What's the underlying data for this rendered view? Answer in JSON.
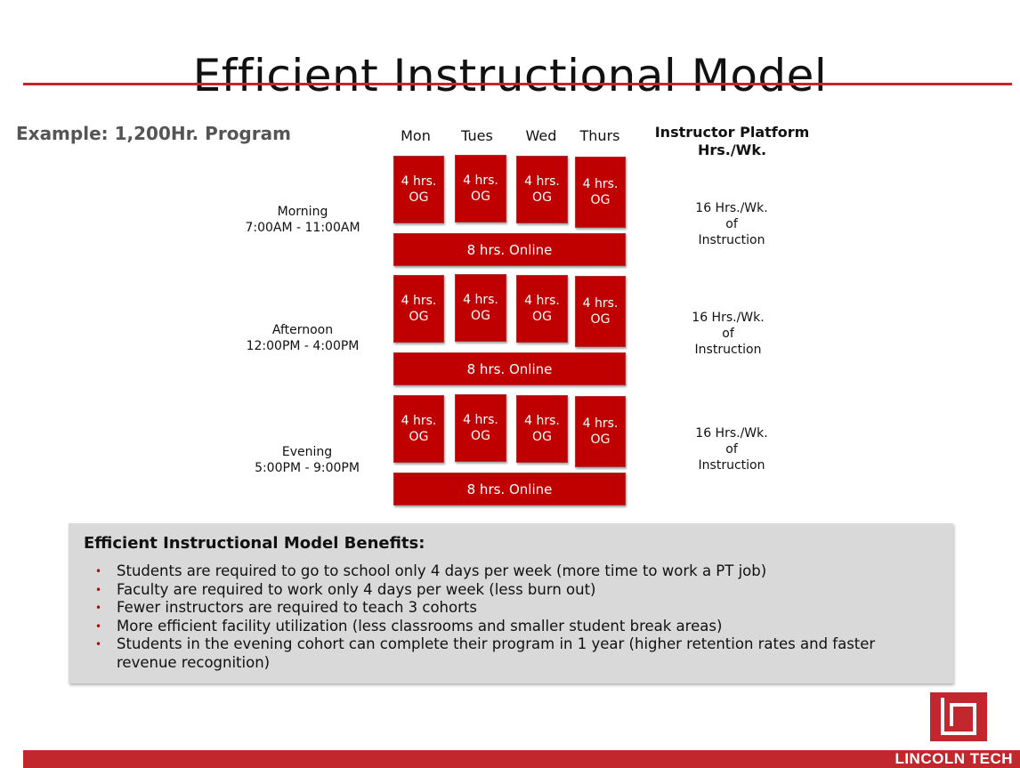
{
  "title": "Efficient Instructional Model",
  "example": "Example: 1,200Hr. Program",
  "days": [
    "Mon",
    "Tues",
    "Wed",
    "Thurs"
  ],
  "platform_header": {
    "line1": "Instructor Platform",
    "line2": "Hrs./Wk."
  },
  "block": {
    "line1": "4 hrs.",
    "line2": "OG"
  },
  "online": "8 hrs. Online",
  "slots": [
    {
      "name": "Morning",
      "time": "7:00AM - 11:00AM",
      "hrs": "16 Hrs./Wk.",
      "of": "of",
      "instr": "Instruction"
    },
    {
      "name": "Afternoon",
      "time": "12:00PM - 4:00PM",
      "hrs": "16 Hrs./Wk.",
      "of": "of",
      "instr": "Instruction"
    },
    {
      "name": "Evening",
      "time": "5:00PM - 9:00PM",
      "hrs": "16 Hrs./Wk.",
      "of": "of",
      "instr": "Instruction"
    }
  ],
  "benefits": {
    "title": "Efficient Instructional Model Benefits:",
    "items": [
      "Students are required to go to school only 4 days per week (more time to work a PT job)",
      "Faculty are required to work only 4 days per week (less burn out)",
      "Fewer instructors are required to teach 3 cohorts",
      "More efficient facility utilization (less classrooms and smaller student break areas)",
      "Students in the evening cohort can complete their program in 1 year (higher retention rates and faster revenue recognition)"
    ]
  },
  "brand": "LINCOLN TECH",
  "colors": {
    "accent": "#c1272d",
    "block": "#c00000"
  }
}
